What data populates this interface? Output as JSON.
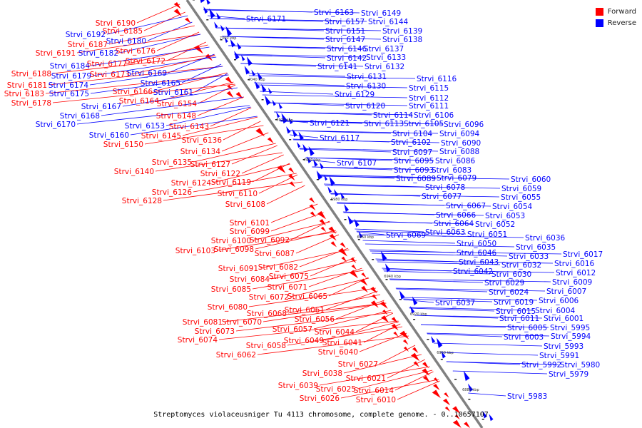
{
  "caption": "Streptomyces violaceusniger Tu 4113 chromosome, complete genome. - 0..10657107",
  "legend": [
    {
      "name": "Forward",
      "color": "#ff0000"
    },
    {
      "name": "Reverse",
      "color": "#0000ff"
    }
  ],
  "colors": {
    "forward": "#ff0000",
    "reverse": "#0000ff",
    "axis": "#808080"
  },
  "kbp_marks": [
    "7060 kbp",
    "7040 kbp",
    "7020 kbp",
    "7000 kbp",
    "6980 kbp",
    "6960 kbp",
    "6940 kbp",
    "6920 kbp",
    "6900 kbp",
    "6880 kbp"
  ],
  "left_labels": [
    {
      "t": "Strvi_6190",
      "c": "f"
    },
    {
      "t": "Strvi_6185",
      "c": "f"
    },
    {
      "t": "Strvi_6192",
      "c": "r"
    },
    {
      "t": "Strvi_6180",
      "c": "r"
    },
    {
      "t": "Strvi_6187",
      "c": "f"
    },
    {
      "t": "Strvi_6191",
      "c": "f"
    },
    {
      "t": "Strvi_6182",
      "c": "r"
    },
    {
      "t": "Strvi_6176",
      "c": "f"
    },
    {
      "t": "Strvi_6172",
      "c": "f"
    },
    {
      "t": "Strvi_6184",
      "c": "r"
    },
    {
      "t": "Strvi_6177",
      "c": "f"
    },
    {
      "t": "Strvi_6188",
      "c": "f"
    },
    {
      "t": "Strvi_6179",
      "c": "r"
    },
    {
      "t": "Strvi_6173",
      "c": "f"
    },
    {
      "t": "Strvi_6169",
      "c": "r"
    },
    {
      "t": "Strvi_6181",
      "c": "f"
    },
    {
      "t": "Strvi_6174",
      "c": "r"
    },
    {
      "t": "Strvi_6165",
      "c": "r"
    },
    {
      "t": "Strvi_6183",
      "c": "f"
    },
    {
      "t": "Strvi_6175",
      "c": "r"
    },
    {
      "t": "Strvi_6166",
      "c": "f"
    },
    {
      "t": "Strvi_6161",
      "c": "r"
    },
    {
      "t": "Strvi_6178",
      "c": "f"
    },
    {
      "t": "Strvi_6164",
      "c": "f"
    },
    {
      "t": "Strvi_6167",
      "c": "r"
    },
    {
      "t": "Strvi_6154",
      "c": "f"
    },
    {
      "t": "Strvi_6168",
      "c": "r"
    },
    {
      "t": "Strvi_6148",
      "c": "f"
    },
    {
      "t": "Strvi_6170",
      "c": "r"
    },
    {
      "t": "Strvi_6153",
      "c": "r"
    },
    {
      "t": "Strvi_6143",
      "c": "f"
    },
    {
      "t": "Strvi_6160",
      "c": "r"
    },
    {
      "t": "Strvi_6145",
      "c": "f"
    },
    {
      "t": "Strvi_6136",
      "c": "f"
    },
    {
      "t": "Strvi_6150",
      "c": "f"
    },
    {
      "t": "Strvi_6134",
      "c": "f"
    },
    {
      "t": "Strvi_6135",
      "c": "f"
    },
    {
      "t": "Strvi_6127",
      "c": "f"
    },
    {
      "t": "Strvi_6140",
      "c": "f"
    },
    {
      "t": "Strvi_6122",
      "c": "f"
    },
    {
      "t": "Strvi_6124",
      "c": "f"
    },
    {
      "t": "Strvi_6119",
      "c": "f"
    },
    {
      "t": "Strvi_6126",
      "c": "f"
    },
    {
      "t": "Strvi_6110",
      "c": "f"
    },
    {
      "t": "Strvi_6128",
      "c": "f"
    },
    {
      "t": "Strvi_6108",
      "c": "f"
    },
    {
      "t": "Strvi_6101",
      "c": "f"
    },
    {
      "t": "Strvi_6099",
      "c": "f"
    },
    {
      "t": "Strvi_6100",
      "c": "f"
    },
    {
      "t": "Strvi_6092",
      "c": "f"
    },
    {
      "t": "Strvi_6103",
      "c": "f"
    },
    {
      "t": "Strvi_6098",
      "c": "f"
    },
    {
      "t": "Strvi_6087",
      "c": "f"
    },
    {
      "t": "Strvi_6091",
      "c": "f"
    },
    {
      "t": "Strvi_6082",
      "c": "f"
    },
    {
      "t": "Strvi_6084",
      "c": "f"
    },
    {
      "t": "Strvi_6075",
      "c": "f"
    },
    {
      "t": "Strvi_6085",
      "c": "f"
    },
    {
      "t": "Strvi_6071",
      "c": "f"
    },
    {
      "t": "Strvi_6072",
      "c": "f"
    },
    {
      "t": "Strvi_6065",
      "c": "f"
    },
    {
      "t": "Strvi_6080",
      "c": "f"
    },
    {
      "t": "Strvi_6068",
      "c": "f"
    },
    {
      "t": "Strvi_6061",
      "c": "f"
    },
    {
      "t": "Strvi_6081",
      "c": "f"
    },
    {
      "t": "Strvi_6070",
      "c": "f"
    },
    {
      "t": "Strvi_6056",
      "c": "f"
    },
    {
      "t": "Strvi_6073",
      "c": "f"
    },
    {
      "t": "Strvi_6057",
      "c": "f"
    },
    {
      "t": "Strvi_6044",
      "c": "f"
    },
    {
      "t": "Strvi_6074",
      "c": "f"
    },
    {
      "t": "Strvi_6049",
      "c": "f"
    },
    {
      "t": "Strvi_6041",
      "c": "f"
    },
    {
      "t": "Strvi_6058",
      "c": "f"
    },
    {
      "t": "Strvi_6040",
      "c": "f"
    },
    {
      "t": "Strvi_6062",
      "c": "f"
    },
    {
      "t": "Strvi_6027",
      "c": "f"
    },
    {
      "t": "Strvi_6038",
      "c": "f"
    },
    {
      "t": "Strvi_6021",
      "c": "f"
    },
    {
      "t": "Strvi_6039",
      "c": "f"
    },
    {
      "t": "Strvi_6025",
      "c": "f"
    },
    {
      "t": "Strvi_6014",
      "c": "f"
    },
    {
      "t": "Strvi_6026",
      "c": "f"
    },
    {
      "t": "Strvi_6010",
      "c": "f"
    }
  ],
  "right_labels": [
    {
      "t": "Strvi_6171",
      "c": "r"
    },
    {
      "t": "Strvi_6163",
      "c": "r"
    },
    {
      "t": "Strvi_6149",
      "c": "r"
    },
    {
      "t": "Strvi_6157",
      "c": "r"
    },
    {
      "t": "Strvi_6144",
      "c": "r"
    },
    {
      "t": "Strvi_6151",
      "c": "r"
    },
    {
      "t": "Strvi_6139",
      "c": "r"
    },
    {
      "t": "Strvi_6147",
      "c": "r"
    },
    {
      "t": "Strvi_6138",
      "c": "r"
    },
    {
      "t": "Strvi_6146",
      "c": "r"
    },
    {
      "t": "Strvi_6137",
      "c": "r"
    },
    {
      "t": "Strvi_6142",
      "c": "r"
    },
    {
      "t": "Strvi_6133",
      "c": "r"
    },
    {
      "t": "Strvi_6141",
      "c": "r"
    },
    {
      "t": "Strvi_6132",
      "c": "r"
    },
    {
      "t": "Strvi_6131",
      "c": "r"
    },
    {
      "t": "Strvi_6116",
      "c": "r"
    },
    {
      "t": "Strvi_6130",
      "c": "r"
    },
    {
      "t": "Strvi_6115",
      "c": "r"
    },
    {
      "t": "Strvi_6129",
      "c": "r"
    },
    {
      "t": "Strvi_6112",
      "c": "r"
    },
    {
      "t": "Strvi_6120",
      "c": "r"
    },
    {
      "t": "Strvi_6111",
      "c": "r"
    },
    {
      "t": "Strvi_6114",
      "c": "r"
    },
    {
      "t": "Strvi_6106",
      "c": "r"
    },
    {
      "t": "Strvi_6121",
      "c": "r"
    },
    {
      "t": "Strvi_6113",
      "c": "r"
    },
    {
      "t": "Strvi_6105",
      "c": "r"
    },
    {
      "t": "Strvi_6096",
      "c": "r"
    },
    {
      "t": "Strvi_6104",
      "c": "r"
    },
    {
      "t": "Strvi_6094",
      "c": "r"
    },
    {
      "t": "Strvi_6117",
      "c": "r"
    },
    {
      "t": "Strvi_6102",
      "c": "r"
    },
    {
      "t": "Strvi_6090",
      "c": "r"
    },
    {
      "t": "Strvi_6097",
      "c": "r"
    },
    {
      "t": "Strvi_6088",
      "c": "r"
    },
    {
      "t": "Strvi_6095",
      "c": "r"
    },
    {
      "t": "Strvi_6086",
      "c": "r"
    },
    {
      "t": "Strvi_6107",
      "c": "r"
    },
    {
      "t": "Strvi_6093",
      "c": "r"
    },
    {
      "t": "Strvi_6083",
      "c": "r"
    },
    {
      "t": "Strvi_6089",
      "c": "r"
    },
    {
      "t": "Strvi_6079",
      "c": "r"
    },
    {
      "t": "Strvi_6060",
      "c": "r"
    },
    {
      "t": "Strvi_6078",
      "c": "r"
    },
    {
      "t": "Strvi_6059",
      "c": "r"
    },
    {
      "t": "Strvi_6077",
      "c": "r"
    },
    {
      "t": "Strvi_6055",
      "c": "r"
    },
    {
      "t": "Strvi_6067",
      "c": "r"
    },
    {
      "t": "Strvi_6054",
      "c": "r"
    },
    {
      "t": "Strvi_6066",
      "c": "r"
    },
    {
      "t": "Strvi_6053",
      "c": "r"
    },
    {
      "t": "Strvi_6064",
      "c": "r"
    },
    {
      "t": "Strvi_6052",
      "c": "r"
    },
    {
      "t": "Strvi_6063",
      "c": "r"
    },
    {
      "t": "Strvi_6069",
      "c": "r"
    },
    {
      "t": "Strvi_6051",
      "c": "r"
    },
    {
      "t": "Strvi_6036",
      "c": "r"
    },
    {
      "t": "Strvi_6050",
      "c": "r"
    },
    {
      "t": "Strvi_6035",
      "c": "r"
    },
    {
      "t": "Strvi_6046",
      "c": "r"
    },
    {
      "t": "Strvi_6033",
      "c": "r"
    },
    {
      "t": "Strvi_6017",
      "c": "r"
    },
    {
      "t": "Strvi_6043",
      "c": "r"
    },
    {
      "t": "Strvi_6032",
      "c": "r"
    },
    {
      "t": "Strvi_6016",
      "c": "r"
    },
    {
      "t": "Strvi_6042",
      "c": "r"
    },
    {
      "t": "Strvi_6030",
      "c": "r"
    },
    {
      "t": "Strvi_6012",
      "c": "r"
    },
    {
      "t": "Strvi_6029",
      "c": "r"
    },
    {
      "t": "Strvi_6009",
      "c": "r"
    },
    {
      "t": "Strvi_6024",
      "c": "r"
    },
    {
      "t": "Strvi_6007",
      "c": "r"
    },
    {
      "t": "Strvi_6037",
      "c": "r"
    },
    {
      "t": "Strvi_6019",
      "c": "r"
    },
    {
      "t": "Strvi_6006",
      "c": "r"
    },
    {
      "t": "Strvi_6015",
      "c": "r"
    },
    {
      "t": "Strvi_6004",
      "c": "r"
    },
    {
      "t": "Strvi_6011",
      "c": "r"
    },
    {
      "t": "Strvi_6001",
      "c": "r"
    },
    {
      "t": "Strvi_6005",
      "c": "r"
    },
    {
      "t": "Strvi_5995",
      "c": "r"
    },
    {
      "t": "Strvi_6003",
      "c": "r"
    },
    {
      "t": "Strvi_5994",
      "c": "r"
    },
    {
      "t": "Strvi_5993",
      "c": "r"
    },
    {
      "t": "Strvi_5991",
      "c": "r"
    },
    {
      "t": "Strvi_5992",
      "c": "r"
    },
    {
      "t": "Strvi_5980",
      "c": "r"
    },
    {
      "t": "Strvi_5979",
      "c": "r"
    },
    {
      "t": "Strvi_5983",
      "c": "r"
    }
  ]
}
